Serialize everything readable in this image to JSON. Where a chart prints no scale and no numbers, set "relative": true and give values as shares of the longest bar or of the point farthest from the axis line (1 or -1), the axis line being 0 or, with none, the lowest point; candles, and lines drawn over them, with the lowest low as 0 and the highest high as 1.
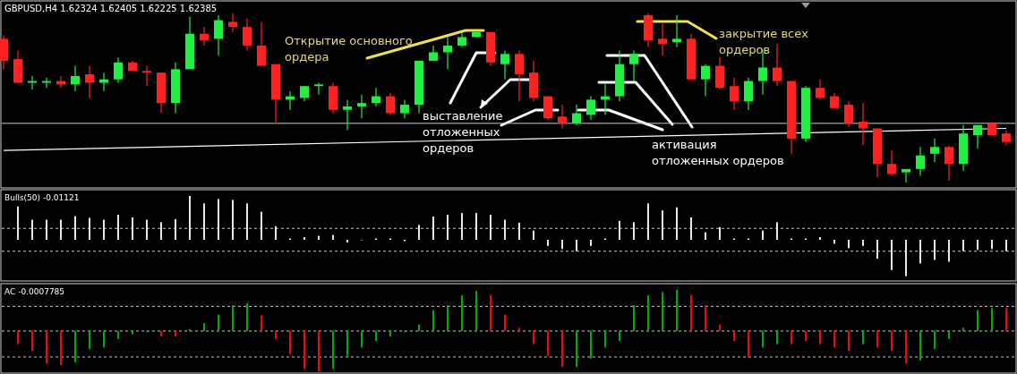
{
  "chart_data": [
    {
      "type": "candlestick",
      "title": "GBPUSD,H4  1.62324 1.62405 1.62225 1.62385",
      "relative": true,
      "categories": [
        null,
        null,
        null,
        null,
        null,
        null,
        null,
        null,
        null,
        null,
        null,
        null,
        null,
        null,
        null,
        null,
        null,
        null,
        null,
        null,
        null,
        null,
        null,
        null,
        null,
        null,
        null,
        null,
        null,
        null,
        null,
        null,
        null,
        null,
        null,
        null,
        null,
        null,
        null,
        null,
        null,
        null,
        null,
        null,
        null,
        null,
        null,
        null,
        null,
        null,
        null,
        null,
        null,
        null,
        null,
        null,
        null,
        null,
        null,
        null,
        null,
        null,
        null,
        null,
        null,
        null,
        null,
        null,
        null,
        null,
        null
      ],
      "ohlc": [
        [
          0.85,
          0.87,
          0.67,
          0.72
        ],
        [
          0.73,
          0.78,
          0.59,
          0.59
        ],
        [
          0.59,
          0.63,
          0.55,
          0.6
        ],
        [
          0.59,
          0.62,
          0.56,
          0.6
        ],
        [
          0.6,
          0.63,
          0.56,
          0.58
        ],
        [
          0.58,
          0.69,
          0.54,
          0.63
        ],
        [
          0.64,
          0.69,
          0.5,
          0.59
        ],
        [
          0.59,
          0.65,
          0.54,
          0.61
        ],
        [
          0.61,
          0.74,
          0.59,
          0.71
        ],
        [
          0.71,
          0.72,
          0.66,
          0.66
        ],
        [
          0.66,
          0.69,
          0.57,
          0.65
        ],
        [
          0.65,
          0.65,
          0.41,
          0.47
        ],
        [
          0.47,
          0.71,
          0.41,
          0.67
        ],
        [
          0.67,
          0.98,
          0.67,
          0.88
        ],
        [
          0.88,
          0.92,
          0.81,
          0.84
        ],
        [
          0.85,
          0.99,
          0.75,
          0.96
        ],
        [
          0.95,
          1,
          0.89,
          0.92
        ],
        [
          0.92,
          0.97,
          0.78,
          0.81
        ],
        [
          0.81,
          0.95,
          0.69,
          0.69
        ],
        [
          0.7,
          0.7,
          0.35,
          0.49
        ],
        [
          0.49,
          0.54,
          0.43,
          0.51
        ],
        [
          0.5,
          0.57,
          0.48,
          0.57
        ],
        [
          0.57,
          0.59,
          0.52,
          0.58
        ],
        [
          0.57,
          0.59,
          0.41,
          0.43
        ],
        [
          0.43,
          0.49,
          0.31,
          0.45
        ],
        [
          0.45,
          0.52,
          0.38,
          0.47
        ],
        [
          0.47,
          0.56,
          0.45,
          0.51
        ],
        [
          0.51,
          0.53,
          0.4,
          0.41
        ],
        [
          0.41,
          0.49,
          0.38,
          0.46
        ],
        [
          0.46,
          0.72,
          0.41,
          0.72
        ],
        [
          0.72,
          0.81,
          0.72,
          0.77
        ],
        [
          0.77,
          0.86,
          0.67,
          0.81
        ],
        [
          0.81,
          0.89,
          0.8,
          0.86
        ],
        [
          0.86,
          0.9,
          0.86,
          0.89
        ],
        [
          0.89,
          0.89,
          0.69,
          0.71
        ],
        [
          0.7,
          0.78,
          0.61,
          0.76
        ],
        [
          0.76,
          0.78,
          0.48,
          0.64
        ],
        [
          0.65,
          0.72,
          0.48,
          0.5
        ],
        [
          0.51,
          0.51,
          0.37,
          0.38
        ],
        [
          0.39,
          0.46,
          0.32,
          0.35
        ],
        [
          0.35,
          0.46,
          0.34,
          0.41
        ],
        [
          0.4,
          0.51,
          0.37,
          0.49
        ],
        [
          0.49,
          0.59,
          0.4,
          0.51
        ],
        [
          0.51,
          0.78,
          0.48,
          0.7
        ],
        [
          0.7,
          0.78,
          0.6,
          0.76
        ],
        [
          0.99,
          1,
          0.8,
          0.84
        ],
        [
          0.85,
          0.94,
          0.75,
          0.82
        ],
        [
          0.83,
          0.99,
          0.8,
          0.85
        ],
        [
          0.85,
          0.88,
          0.61,
          0.61
        ],
        [
          0.61,
          0.7,
          0.51,
          0.69
        ],
        [
          0.69,
          0.74,
          0.55,
          0.56
        ],
        [
          0.57,
          0.62,
          0.43,
          0.48
        ],
        [
          0.48,
          0.62,
          0.43,
          0.6
        ],
        [
          0.6,
          0.79,
          0.52,
          0.68
        ],
        [
          0.68,
          0.82,
          0.57,
          0.6
        ],
        [
          0.6,
          0.6,
          0.17,
          0.26
        ],
        [
          0.26,
          0.57,
          0.24,
          0.56
        ],
        [
          0.56,
          0.61,
          0.49,
          0.5
        ],
        [
          0.51,
          0.53,
          0.44,
          0.44
        ],
        [
          0.46,
          0.48,
          0.33,
          0.35
        ],
        [
          0.36,
          0.47,
          0.22,
          0.32
        ],
        [
          0.32,
          0.32,
          0.03,
          0.11
        ],
        [
          0.11,
          0.19,
          0.04,
          0.05
        ],
        [
          0.06,
          0.08,
          0,
          0.08
        ],
        [
          0.08,
          0.21,
          0.04,
          0.16
        ],
        [
          0.17,
          0.26,
          0.12,
          0.21
        ],
        [
          0.21,
          0.22,
          0.01,
          0.11
        ],
        [
          0.11,
          0.34,
          0.07,
          0.29
        ],
        [
          0.28,
          0.34,
          0.2,
          0.34
        ],
        [
          0.35,
          0.36,
          0.28,
          0.28
        ],
        [
          0.29,
          0.31,
          0.22,
          0.24
        ]
      ],
      "colors": [
        "#ff2222",
        "#ff2222",
        "#22ee44",
        "#22ee44",
        "#ff2222",
        "#22ee44",
        "#ff2222",
        "#22ee44",
        "#22ee44",
        "#ff2222",
        "#ff2222",
        "#ff2222",
        "#22ee44",
        "#22ee44",
        "#ff2222",
        "#22ee44",
        "#ff2222",
        "#ff2222",
        "#ff2222",
        "#ff2222",
        "#22ee44",
        "#22ee44",
        "#22ee44",
        "#ff2222",
        "#22ee44",
        "#22ee44",
        "#22ee44",
        "#ff2222",
        "#22ee44",
        "#22ee44",
        "#22ee44",
        "#22ee44",
        "#22ee44",
        "#22ee44",
        "#ff2222",
        "#22ee44",
        "#ff2222",
        "#ff2222",
        "#ff2222",
        "#ff2222",
        "#22ee44",
        "#22ee44",
        "#22ee44",
        "#22ee44",
        "#22ee44",
        "#ff2222",
        "#ff2222",
        "#22ee44",
        "#ff2222",
        "#22ee44",
        "#ff2222",
        "#ff2222",
        "#22ee44",
        "#22ee44",
        "#ff2222",
        "#ff2222",
        "#22ee44",
        "#ff2222",
        "#ff2222",
        "#ff2222",
        "#ff2222",
        "#ff2222",
        "#ff2222",
        "#22ee44",
        "#22ee44",
        "#22ee44",
        "#ff2222",
        "#22ee44",
        "#22ee44",
        "#ff2222",
        "#ff2222"
      ],
      "series": [
        {
          "type": "line",
          "color": "#ffffff",
          "values": [
            0.19,
            null,
            null,
            null,
            null,
            null,
            null,
            null,
            null,
            null,
            null,
            null,
            null,
            null,
            null,
            null,
            null,
            null,
            null,
            null,
            null,
            null,
            null,
            null,
            null,
            null,
            null,
            null,
            null,
            null,
            null,
            null,
            null,
            null,
            null,
            null,
            null,
            null,
            null,
            null,
            null,
            null,
            null,
            null,
            null,
            null,
            null,
            null,
            null,
            null,
            null,
            null,
            null,
            null,
            null,
            null,
            null,
            null,
            null,
            null,
            null,
            null,
            null,
            null,
            null,
            null,
            null,
            null,
            null,
            null,
            0.32
          ]
        }
      ],
      "ref_lines": [
        {
          "axis": "y",
          "value": 0.35,
          "color": "#c8c8c8"
        }
      ],
      "annotations": [
        "Открытие основного ордера",
        "выставление отложенных ордеров",
        "активация отложенных ордеров",
        "закрытие всех ордеров"
      ]
    },
    {
      "type": "bar",
      "title": "Bulls(50) -0.01121",
      "relative": true,
      "color": "#e8e8e8",
      "categories": [
        null,
        null,
        null,
        null,
        null,
        null,
        null,
        null,
        null,
        null,
        null,
        null,
        null,
        null,
        null,
        null,
        null,
        null,
        null,
        null,
        null,
        null,
        null,
        null,
        null,
        null,
        null,
        null,
        null,
        null,
        null,
        null,
        null,
        null,
        null,
        null,
        null,
        null,
        null,
        null,
        null,
        null,
        null,
        null,
        null,
        null,
        null,
        null,
        null,
        null,
        null,
        null,
        null,
        null,
        null,
        null,
        null,
        null,
        null,
        null,
        null,
        null,
        null,
        null,
        null,
        null,
        null,
        null,
        null,
        null,
        null
      ],
      "values": [
        null,
        0.76,
        0.46,
        0.46,
        0.46,
        0.54,
        0.5,
        0.46,
        0.57,
        0.51,
        0.46,
        0.4,
        0.47,
        1,
        0.83,
        0.93,
        0.91,
        0.83,
        0.64,
        0.31,
        0.03,
        0.06,
        0.09,
        0.11,
        -0.06,
        0,
        0.03,
        0.03,
        -0.03,
        0.34,
        0.53,
        0.57,
        0.61,
        0.61,
        0.57,
        0.46,
        0.39,
        0.21,
        -0.14,
        -0.21,
        -0.26,
        -0.14,
        0.03,
        0.43,
        0.4,
        0.83,
        0.67,
        0.74,
        0.51,
        0.17,
        0.29,
        0.03,
        0.03,
        0.21,
        0.4,
        0.03,
        0.03,
        0.06,
        -0.09,
        -0.19,
        -0.14,
        -0.43,
        -0.69,
        -0.83,
        -0.54,
        -0.46,
        -0.5,
        -0.26,
        -0.23,
        -0.21,
        -0.26
      ],
      "ref_lines": [
        {
          "axis": "y",
          "value": 0.26,
          "color": "#c8c8c8",
          "line_style": "dashed"
        },
        {
          "axis": "y",
          "value": -0.26,
          "color": "#c8c8c8",
          "line_style": "dashed"
        }
      ]
    },
    {
      "type": "bar",
      "title": "AC -0.0007785",
      "relative": true,
      "categories": [
        null,
        null,
        null,
        null,
        null,
        null,
        null,
        null,
        null,
        null,
        null,
        null,
        null,
        null,
        null,
        null,
        null,
        null,
        null,
        null,
        null,
        null,
        null,
        null,
        null,
        null,
        null,
        null,
        null,
        null,
        null,
        null,
        null,
        null,
        null,
        null,
        null,
        null,
        null,
        null,
        null,
        null,
        null,
        null,
        null,
        null,
        null,
        null,
        null,
        null,
        null,
        null,
        null,
        null,
        null,
        null,
        null,
        null,
        null,
        null,
        null,
        null,
        null,
        null,
        null,
        null,
        null,
        null,
        null,
        null,
        null
      ],
      "values": [
        null,
        -0.32,
        -0.48,
        -0.79,
        -0.83,
        -0.76,
        -0.44,
        -0.4,
        -0.19,
        -0.08,
        -0.03,
        -0.13,
        -0.13,
        0.05,
        0.19,
        0.4,
        0.63,
        0.67,
        0.38,
        -0.19,
        -0.56,
        -0.92,
        -0.98,
        -0.92,
        -0.6,
        -0.4,
        -0.24,
        -0.13,
        -0.03,
        0.16,
        0.51,
        0.63,
        0.87,
        0.97,
        0.87,
        0.4,
        0.08,
        -0.32,
        -0.6,
        -0.87,
        -0.87,
        -0.67,
        -0.4,
        -0.24,
        0.63,
        0.87,
        0.95,
        1,
        0.87,
        0.63,
        0.16,
        -0.24,
        -0.63,
        -0.4,
        -0.32,
        -0.32,
        -0.24,
        -0.32,
        -0.4,
        -0.48,
        -0.32,
        -0.4,
        -0.48,
        -0.79,
        -0.71,
        -0.44,
        -0.19,
        0.08,
        0.51,
        0.56,
        0.56
      ],
      "colors": [
        "#ff0000",
        "#ff0000",
        "#ff0000",
        "#ff0000",
        "#ff0000",
        "#00b000",
        "#00b000",
        "#00b000",
        "#00b000",
        "#00b000",
        "#00b000",
        "#ff0000",
        "#ff0000",
        "#00b000",
        "#00b000",
        "#00b000",
        "#00b000",
        "#00b000",
        "#ff0000",
        "#ff0000",
        "#ff0000",
        "#ff0000",
        "#ff0000",
        "#00b000",
        "#00b000",
        "#00b000",
        "#00b000",
        "#00b000",
        "#00b000",
        "#00b000",
        "#00b000",
        "#00b000",
        "#00b000",
        "#00b000",
        "#ff0000",
        "#ff0000",
        "#ff0000",
        "#ff0000",
        "#ff0000",
        "#ff0000",
        "#00b000",
        "#00b000",
        "#00b000",
        "#00b000",
        "#00b000",
        "#00b000",
        "#00b000",
        "#00b000",
        "#ff0000",
        "#ff0000",
        "#ff0000",
        "#ff0000",
        "#ff0000",
        "#00b000",
        "#00b000",
        "#ff0000",
        "#ff0000",
        "#ff0000",
        "#ff0000",
        "#ff0000",
        "#00b000",
        "#ff0000",
        "#ff0000",
        "#ff0000",
        "#00b000",
        "#00b000",
        "#00b000",
        "#00b000",
        "#00b000",
        "#00b000",
        "#ff0000"
      ],
      "ref_lines": [
        {
          "axis": "y",
          "value": 0.6,
          "color": "#c8c8c8",
          "line_style": "dashed"
        },
        {
          "axis": "y",
          "value": 0,
          "color": "#c8c8c8",
          "line_style": "dashed"
        },
        {
          "axis": "y",
          "value": -0.63,
          "color": "#c8c8c8",
          "line_style": "dashed"
        }
      ]
    }
  ]
}
